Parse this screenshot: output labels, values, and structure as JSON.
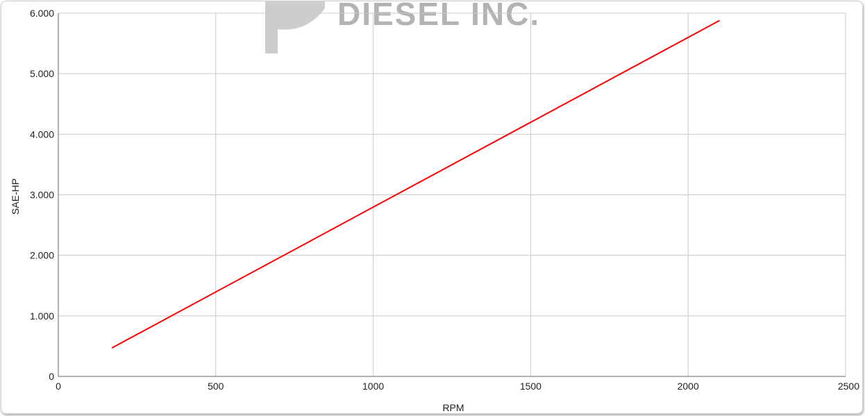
{
  "watermark": {
    "text": "DIESEL INC."
  },
  "colors": {
    "line": "#ff0000",
    "grid": "#c8c8c8",
    "axis": "#666666",
    "watermark": "#b3b3b3"
  },
  "chart_data": {
    "type": "line",
    "title": "",
    "xlabel": "RPM",
    "ylabel": "SAE-HP",
    "xlim": [
      0,
      2500
    ],
    "ylim": [
      0,
      6000
    ],
    "x_ticks": [
      0,
      500,
      1000,
      1500,
      2000,
      2500
    ],
    "x_tick_labels": [
      "0",
      "500",
      "1000",
      "1500",
      "2000",
      "2500"
    ],
    "y_ticks": [
      0,
      1000,
      2000,
      3000,
      4000,
      5000,
      6000
    ],
    "y_tick_labels": [
      "0",
      "1.000",
      "2.000",
      "3.000",
      "4.000",
      "5.000",
      "6.000"
    ],
    "grid": true,
    "legend": "none",
    "series": [
      {
        "x": [
          170,
          2100
        ],
        "y": [
          470,
          5880
        ]
      }
    ]
  }
}
